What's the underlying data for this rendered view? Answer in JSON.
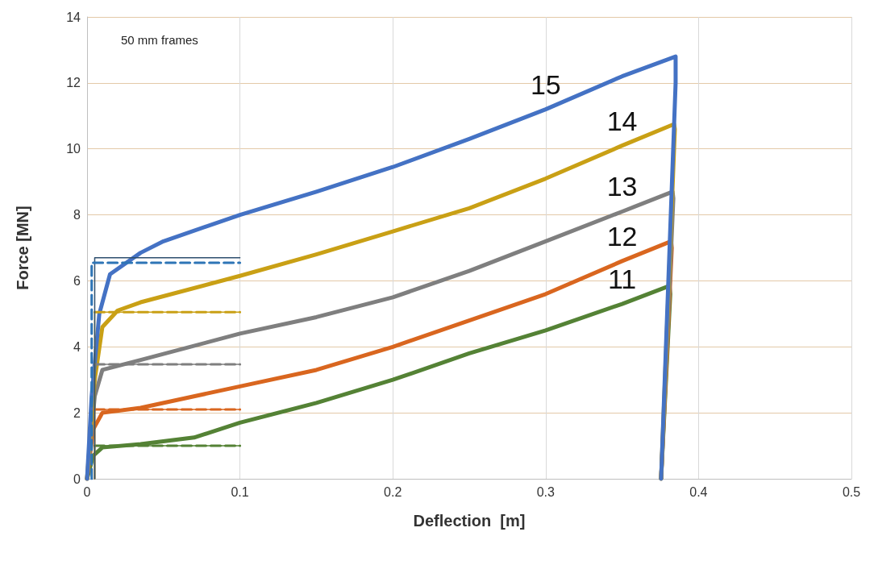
{
  "chart_data": {
    "type": "line",
    "xlabel": "Deflection  [m]",
    "ylabel": "Force [MN]",
    "xlim": [
      0,
      0.5
    ],
    "xticks": [
      0,
      0.1,
      0.2,
      0.3,
      0.4,
      0.5
    ],
    "ylim": [
      0,
      14
    ],
    "yticks": [
      0,
      2,
      4,
      6,
      8,
      10,
      12,
      14
    ],
    "grid": true,
    "marker": "none",
    "annotations": [
      "50 mm frames"
    ],
    "series": [
      {
        "name": "11",
        "color": "#548235",
        "x": [
          0,
          0.004,
          0.01,
          0.035,
          0.07,
          0.1,
          0.15,
          0.2,
          0.25,
          0.3,
          0.35,
          0.381,
          0.3815,
          0.3755
        ],
        "values": [
          0,
          0.7,
          0.95,
          1.05,
          1.25,
          1.7,
          2.3,
          3.0,
          3.8,
          4.5,
          5.3,
          5.85,
          5.6,
          0
        ]
      },
      {
        "name": "12",
        "color": "#d9661f",
        "x": [
          0,
          0.004,
          0.01,
          0.035,
          0.1,
          0.15,
          0.2,
          0.25,
          0.3,
          0.35,
          0.382,
          0.3825,
          0.3755
        ],
        "values": [
          0,
          1.5,
          2.0,
          2.15,
          2.8,
          3.3,
          4.0,
          4.8,
          5.6,
          6.6,
          7.2,
          7.0,
          0
        ]
      },
      {
        "name": "13",
        "color": "#7f7f7f",
        "x": [
          0,
          0.005,
          0.01,
          0.035,
          0.1,
          0.15,
          0.2,
          0.25,
          0.3,
          0.35,
          0.383,
          0.3835,
          0.3755
        ],
        "values": [
          0,
          2.5,
          3.3,
          3.6,
          4.4,
          4.9,
          5.5,
          6.3,
          7.2,
          8.1,
          8.7,
          8.5,
          0
        ]
      },
      {
        "name": "14",
        "color": "#c9a015",
        "x": [
          0,
          0.005,
          0.01,
          0.02,
          0.035,
          0.1,
          0.15,
          0.2,
          0.25,
          0.3,
          0.35,
          0.384,
          0.3845,
          0.3755
        ],
        "values": [
          0,
          3.0,
          4.6,
          5.1,
          5.35,
          6.15,
          6.8,
          7.5,
          8.2,
          9.1,
          10.1,
          10.75,
          10.6,
          0
        ]
      },
      {
        "name": "15",
        "color": "#4472c4",
        "x": [
          0,
          0.003,
          0.008,
          0.015,
          0.035,
          0.05,
          0.1,
          0.15,
          0.2,
          0.25,
          0.3,
          0.35,
          0.385,
          0.385,
          0.3755
        ],
        "values": [
          0,
          2.5,
          5.0,
          6.2,
          6.85,
          7.2,
          8.0,
          8.7,
          9.45,
          10.3,
          11.2,
          12.2,
          12.8,
          12.0,
          0
        ]
      },
      {
        "color": "#548235",
        "line_style": "solid",
        "x": [
          0.005,
          0.005,
          0.1
        ],
        "values": [
          0,
          1.0,
          1.0
        ]
      },
      {
        "color": "#548235",
        "line_style": "dashed",
        "x": [
          0.005,
          0.1
        ],
        "values": [
          1.0,
          1.0
        ]
      },
      {
        "color": "#d9661f",
        "line_style": "solid",
        "x": [
          0.005,
          0.005,
          0.1
        ],
        "values": [
          0,
          2.1,
          2.1
        ]
      },
      {
        "color": "#d9661f",
        "line_style": "dashed",
        "x": [
          0.005,
          0.1
        ],
        "values": [
          2.1,
          2.1
        ]
      },
      {
        "color": "#7f7f7f",
        "line_style": "solid",
        "x": [
          0.005,
          0.005,
          0.1
        ],
        "values": [
          0,
          3.47,
          3.47
        ]
      },
      {
        "color": "#7f7f7f",
        "line_style": "dashed",
        "x": [
          0.005,
          0.1
        ],
        "values": [
          3.47,
          3.47
        ]
      },
      {
        "color": "#c9a015",
        "line_style": "solid",
        "x": [
          0.005,
          0.005,
          0.1
        ],
        "values": [
          0,
          5.05,
          5.05
        ]
      },
      {
        "color": "#c9a015",
        "line_style": "dashed",
        "x": [
          0.005,
          0.1
        ],
        "values": [
          5.05,
          5.05
        ]
      },
      {
        "color": "#2e4f6e",
        "line_style": "solid",
        "x": [
          0.005,
          0.005,
          0.1
        ],
        "values": [
          0,
          6.7,
          6.7
        ]
      },
      {
        "color": "#2e75b6",
        "line_style": "dashed",
        "x": [
          0.003,
          0.003,
          0.1
        ],
        "values": [
          0,
          6.55,
          6.55
        ]
      }
    ]
  }
}
